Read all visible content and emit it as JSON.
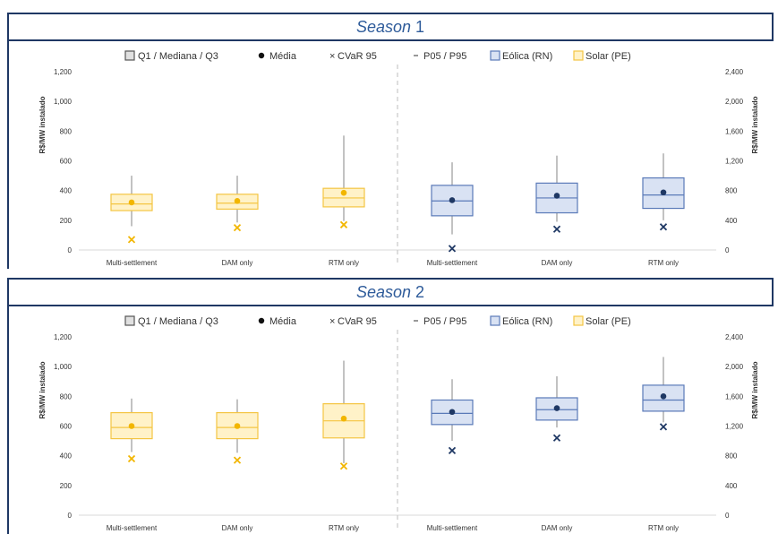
{
  "colors": {
    "title_text": "#2e5b9a",
    "frame": "#1f3864",
    "solar_fill": "#fff2c8",
    "solar_stroke": "#f4c542",
    "solar_marker": "#f2b600",
    "wind_fill": "#d9e2f3",
    "wind_stroke": "#5a7ab8",
    "wind_marker": "#1f3864",
    "whisker": "#999999",
    "divider": "#c8c8c8"
  },
  "legend": {
    "quartiles": "Q1 / Mediana / Q3",
    "mean": "Média",
    "cvar": "CVaR 95",
    "percentiles": "P05 / P95",
    "wind": "Eólica (RN)",
    "solar": "Solar (PE)"
  },
  "chart_data": [
    {
      "type": "boxplot",
      "title": "Season",
      "title_number": "1",
      "ylabel_left": "R$/MW instalado",
      "ylabel_right": "R$/MW instalado",
      "ylim_left": [
        0,
        1200
      ],
      "ylim_right": [
        0,
        2400
      ],
      "yticks_left": [
        "0",
        "200",
        "400",
        "600",
        "800",
        "1,000",
        "1,200"
      ],
      "yticks_right": [
        "0",
        "400",
        "800",
        "1,200",
        "1,600",
        "2,000",
        "2,400"
      ],
      "categories": [
        "Multi-settlement",
        "DAM only",
        "RTM only",
        "Multi-settlement",
        "DAM only",
        "RTM only"
      ],
      "series": [
        {
          "name": "Solar (PE)",
          "axis": "left",
          "boxes": [
            {
              "category": "Multi-settlement",
              "p05": 160,
              "q1": 265,
              "median": 310,
              "q3": 375,
              "p95": 500,
              "mean": 320,
              "cvar95": 70
            },
            {
              "category": "DAM only",
              "p05": 185,
              "q1": 275,
              "median": 315,
              "q3": 375,
              "p95": 500,
              "mean": 330,
              "cvar95": 150
            },
            {
              "category": "RTM only",
              "p05": 195,
              "q1": 290,
              "median": 350,
              "q3": 415,
              "p95": 770,
              "mean": 385,
              "cvar95": 170
            }
          ]
        },
        {
          "name": "Eólica (RN)",
          "axis": "right",
          "boxes": [
            {
              "category": "Multi-settlement",
              "p05": 210,
              "q1": 460,
              "median": 660,
              "q3": 870,
              "p95": 1180,
              "mean": 670,
              "cvar95": 20
            },
            {
              "category": "DAM only",
              "p05": 380,
              "q1": 500,
              "median": 700,
              "q3": 900,
              "p95": 1270,
              "mean": 730,
              "cvar95": 280
            },
            {
              "category": "RTM only",
              "p05": 400,
              "q1": 560,
              "median": 740,
              "q3": 970,
              "p95": 1300,
              "mean": 775,
              "cvar95": 310
            }
          ]
        }
      ]
    },
    {
      "type": "boxplot",
      "title": "Season",
      "title_number": "2",
      "ylabel_left": "R$/MW instalado",
      "ylabel_right": "R$/MW instalado",
      "ylim_left": [
        0,
        1200
      ],
      "ylim_right": [
        0,
        2400
      ],
      "yticks_left": [
        "0",
        "200",
        "400",
        "600",
        "800",
        "1,000",
        "1,200"
      ],
      "yticks_right": [
        "0",
        "400",
        "800",
        "1,200",
        "1,600",
        "2,000",
        "2,400"
      ],
      "categories": [
        "Multi-settlement",
        "DAM only",
        "RTM only",
        "Multi-settlement",
        "DAM only",
        "RTM only"
      ],
      "series": [
        {
          "name": "Solar (PE)",
          "axis": "left",
          "boxes": [
            {
              "category": "Multi-settlement",
              "p05": 425,
              "q1": 515,
              "median": 590,
              "q3": 690,
              "p95": 785,
              "mean": 600,
              "cvar95": 380
            },
            {
              "category": "DAM only",
              "p05": 420,
              "q1": 515,
              "median": 590,
              "q3": 690,
              "p95": 780,
              "mean": 600,
              "cvar95": 370
            },
            {
              "category": "RTM only",
              "p05": 350,
              "q1": 520,
              "median": 635,
              "q3": 750,
              "p95": 1040,
              "mean": 650,
              "cvar95": 330
            }
          ]
        },
        {
          "name": "Eólica (RN)",
          "axis": "right",
          "boxes": [
            {
              "category": "Multi-settlement",
              "p05": 1000,
              "q1": 1220,
              "median": 1370,
              "q3": 1550,
              "p95": 1830,
              "mean": 1390,
              "cvar95": 870
            },
            {
              "category": "DAM only",
              "p05": 1180,
              "q1": 1280,
              "median": 1420,
              "q3": 1580,
              "p95": 1870,
              "mean": 1440,
              "cvar95": 1040
            },
            {
              "category": "RTM only",
              "p05": 1250,
              "q1": 1400,
              "median": 1550,
              "q3": 1750,
              "p95": 2130,
              "mean": 1600,
              "cvar95": 1190
            }
          ]
        }
      ]
    }
  ]
}
